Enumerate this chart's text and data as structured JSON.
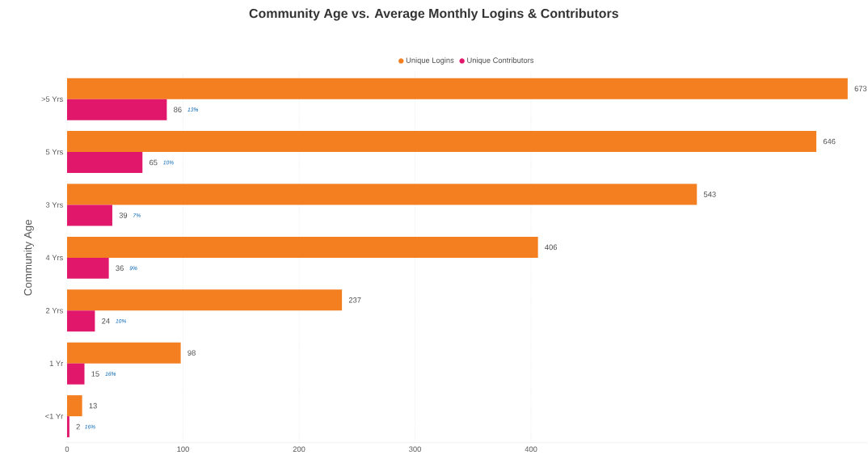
{
  "chart_data": {
    "type": "bar",
    "orientation": "horizontal",
    "title": "Community Age vs. Average Monthly Logins & Contributors",
    "ylabel": "Community Age",
    "categories": [
      ">5 Yrs",
      "5 Yrs",
      "3 Yrs",
      "4 Yrs",
      "2 Yrs",
      "1 Yr",
      "<1 Yr"
    ],
    "series": [
      {
        "name": "Unique Logins",
        "color": "#f47f20",
        "values": [
          673,
          646,
          543,
          406,
          237,
          98,
          13
        ]
      },
      {
        "name": "Unique Contributors",
        "color": "#e0176a",
        "values": [
          86,
          65,
          39,
          36,
          24,
          15,
          2
        ]
      }
    ],
    "annotations": [
      "13%",
      "10%",
      "7%",
      "9%",
      "10%",
      "16%",
      "16%"
    ],
    "xlim": [
      0,
      690
    ],
    "xticks": [
      0,
      100,
      200,
      300,
      400
    ],
    "grid": "x",
    "legend": "top",
    "data_labels": true
  }
}
